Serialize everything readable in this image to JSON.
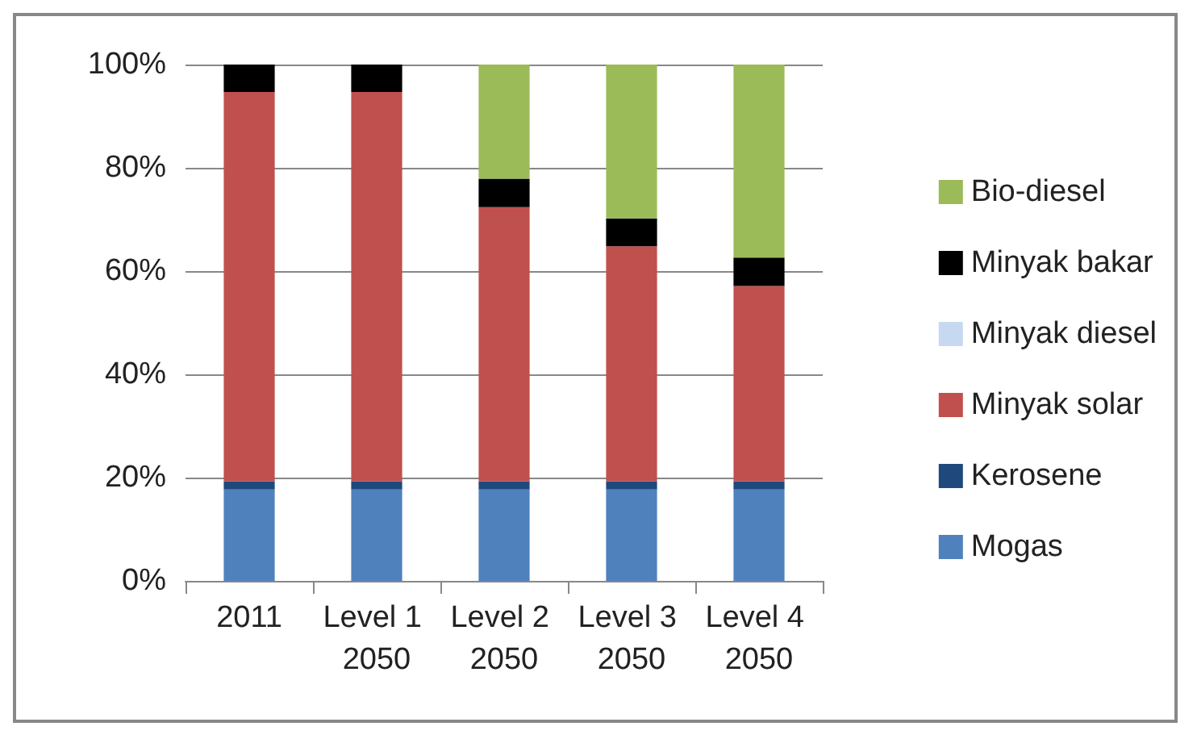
{
  "chart_data": {
    "type": "bar",
    "stacked": true,
    "categories": [
      "2011",
      "Level 1 2050",
      "Level 2 2050",
      "Level 3 2050",
      "Level 4 2050"
    ],
    "series": [
      {
        "name": "Mogas",
        "color": "#4f81bd",
        "values": [
          17.7,
          17.7,
          17.7,
          17.7,
          17.7
        ]
      },
      {
        "name": "Kerosene",
        "color": "#1f497d",
        "values": [
          1.6,
          1.6,
          1.6,
          1.6,
          1.6
        ]
      },
      {
        "name": "Minyak solar",
        "color": "#c0504d",
        "values": [
          75.4,
          75.4,
          53.1,
          45.5,
          37.8
        ]
      },
      {
        "name": "Minyak diesel",
        "color": "#c6d9f1",
        "values": [
          null,
          null,
          null,
          null,
          null
        ]
      },
      {
        "name": "Minyak bakar",
        "color": "#000000",
        "values": [
          5.3,
          5.3,
          5.5,
          5.4,
          5.5
        ]
      },
      {
        "name": "Bio-diesel",
        "color": "#9bbb59",
        "values": [
          null,
          null,
          22.1,
          29.8,
          37.4
        ]
      }
    ],
    "ylim": [
      0,
      100
    ],
    "yticks": [
      {
        "value": 0,
        "label": "0%"
      },
      {
        "value": 20,
        "label": "20%"
      },
      {
        "value": 40,
        "label": "40%"
      },
      {
        "value": 60,
        "label": "60%"
      },
      {
        "value": 80,
        "label": "80%"
      },
      {
        "value": 100,
        "label": "100%"
      }
    ],
    "grid": "y",
    "legend": "right"
  }
}
